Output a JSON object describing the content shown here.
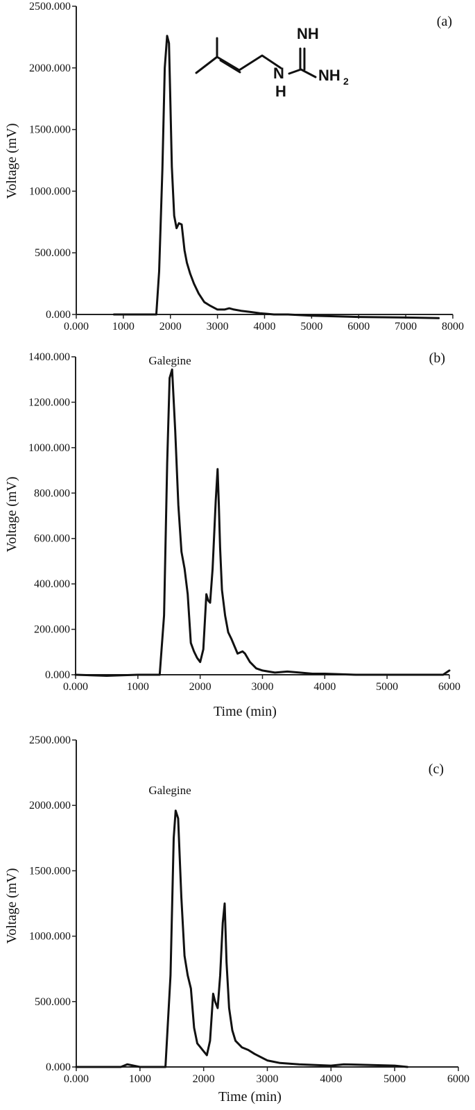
{
  "chart_data": [
    {
      "type": "line",
      "panel_label": "(a)",
      "xlabel": "",
      "ylabel": "Voltage (mV)",
      "xlim": [
        0,
        8000
      ],
      "ylim": [
        0,
        2500
      ],
      "xticks": [
        "0.000",
        "1000",
        "2000",
        "3000",
        "4000",
        "5000",
        "6000",
        "7000",
        "8000"
      ],
      "yticks": [
        "0.000",
        "500.000",
        "1000.000",
        "1500.000",
        "2000.000",
        "2500.000"
      ],
      "annotation": "",
      "structure_labels": {
        "nh": "NH",
        "n": "N",
        "h": "H",
        "nh2_main": "NH",
        "nh2_sub": "2"
      },
      "series": [
        {
          "x": [
            800,
            1700,
            1760,
            1830,
            1880,
            1930,
            1970,
            2000,
            2030,
            2080,
            2130,
            2180,
            2240,
            2300,
            2350,
            2420,
            2500,
            2600,
            2720,
            2850,
            3000,
            3150,
            3250,
            3350,
            3500,
            3700,
            3900,
            4200,
            4500,
            5000,
            6000,
            7000,
            7700
          ],
          "y": [
            0,
            0,
            350,
            1180,
            2000,
            2260,
            2200,
            1700,
            1200,
            800,
            700,
            740,
            730,
            520,
            420,
            330,
            250,
            170,
            100,
            70,
            40,
            40,
            50,
            40,
            30,
            20,
            10,
            0,
            0,
            -10,
            -20,
            -25,
            -30
          ]
        }
      ]
    },
    {
      "type": "line",
      "panel_label": "(b)",
      "xlabel": "Time (min)",
      "ylabel": "Voltage (mV)",
      "xlim": [
        0,
        6000
      ],
      "ylim": [
        0,
        1500
      ],
      "xticks": [
        "0.000",
        "1000",
        "2000",
        "3000",
        "4000",
        "5000",
        "6000"
      ],
      "yticks": [
        "0.000",
        "200.000",
        "400.000",
        "600.000",
        "800.000",
        "1000.000",
        "1200.000",
        "1400.000"
      ],
      "annotation": "Galegine",
      "series": [
        {
          "x": [
            0,
            500,
            1000,
            1350,
            1420,
            1470,
            1510,
            1550,
            1600,
            1650,
            1700,
            1750,
            1800,
            1850,
            1900,
            1950,
            2000,
            2050,
            2100,
            2130,
            2160,
            2200,
            2250,
            2280,
            2300,
            2320,
            2350,
            2400,
            2450,
            2500,
            2600,
            2680,
            2720,
            2800,
            2900,
            3000,
            3200,
            3400,
            3600,
            3800,
            4000,
            4500,
            5000,
            5500,
            5900,
            6000
          ],
          "y": [
            0,
            -5,
            0,
            0,
            280,
            1000,
            1400,
            1440,
            1150,
            800,
            580,
            500,
            380,
            150,
            110,
            80,
            60,
            120,
            380,
            350,
            340,
            500,
            820,
            970,
            800,
            600,
            400,
            280,
            200,
            170,
            100,
            110,
            100,
            60,
            30,
            20,
            10,
            15,
            10,
            5,
            5,
            0,
            0,
            0,
            0,
            20
          ]
        }
      ]
    },
    {
      "type": "line",
      "panel_label": "(c)",
      "xlabel": "Time (min)",
      "ylabel": "Voltage (mV)",
      "xlim": [
        0,
        6000
      ],
      "ylim": [
        0,
        2500
      ],
      "xticks": [
        "0.000",
        "1000",
        "2000",
        "3000",
        "4000",
        "5000",
        "6000"
      ],
      "yticks": [
        "0.000",
        "500.000",
        "1000.000",
        "1500.000",
        "2000.000",
        "2500.000"
      ],
      "annotation": "Galegine",
      "series": [
        {
          "x": [
            0,
            700,
            800,
            1000,
            1400,
            1480,
            1530,
            1560,
            1600,
            1650,
            1700,
            1750,
            1800,
            1850,
            1900,
            1950,
            2000,
            2050,
            2100,
            2150,
            2180,
            2220,
            2260,
            2300,
            2330,
            2360,
            2400,
            2450,
            2500,
            2600,
            2700,
            2800,
            3000,
            3200,
            3500,
            4000,
            4200,
            5000,
            5200
          ],
          "y": [
            0,
            0,
            20,
            0,
            0,
            700,
            1750,
            1960,
            1900,
            1300,
            850,
            700,
            600,
            300,
            180,
            150,
            120,
            90,
            200,
            560,
            500,
            450,
            700,
            1100,
            1250,
            800,
            450,
            280,
            200,
            150,
            130,
            100,
            50,
            30,
            20,
            10,
            20,
            10,
            0
          ]
        }
      ]
    }
  ]
}
